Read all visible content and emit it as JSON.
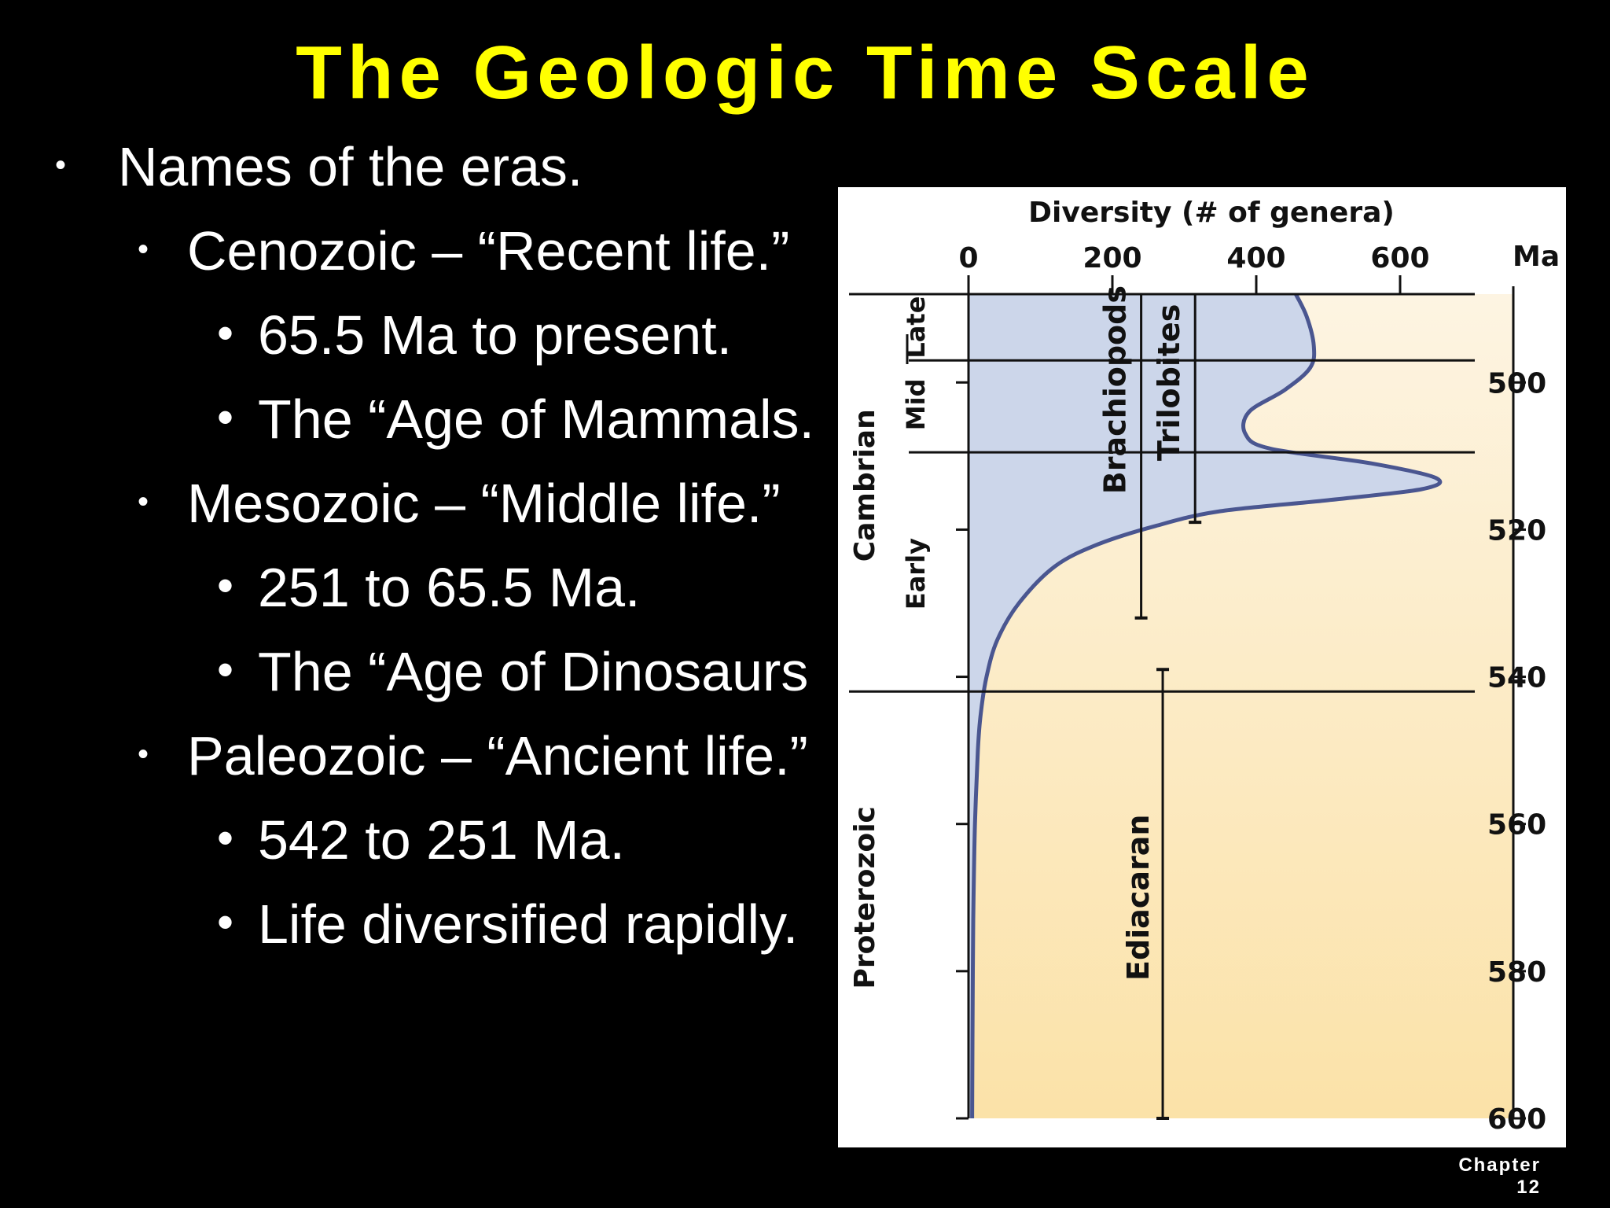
{
  "slide": {
    "title": "The Geologic Time Scale",
    "footer_line1": "Chapter",
    "footer_line2": "12"
  },
  "bullets": {
    "l1": "Names of the eras.",
    "cenozoic": "Cenozoic – “Recent life.”",
    "cenozoic_a": "65.5 Ma to present.",
    "cenozoic_b": "The “Age of Mammals.",
    "mesozoic": "Mesozoic – “Middle life.”",
    "mesozoic_a": "251 to 65.5 Ma.",
    "mesozoic_b": "The “Age of Dinosaurs",
    "paleozoic": "Paleozoic – “Ancient life.”",
    "paleozoic_a": "542 to 251 Ma.",
    "paleozoic_b": "Life diversified rapidly."
  },
  "colors": {
    "title": "#ffff00",
    "background": "#000000",
    "plot_fill_top": "#fdf4e2",
    "plot_fill_bottom": "#fbe2a8",
    "diversity_fill": "#ccd6ea",
    "diversity_line": "#4a5690"
  },
  "chart_data": {
    "type": "area",
    "xlabel": "Diversity (# of genera)",
    "ylabel": "Ma",
    "xlim": [
      0,
      680
    ],
    "ylim": [
      600,
      488
    ],
    "x_ticks": [
      0,
      200,
      400,
      600
    ],
    "y_ticks": [
      500,
      520,
      540,
      560,
      580,
      600
    ],
    "period_labels": [
      "Cambrian",
      "Proterozoic"
    ],
    "epoch_labels": [
      "Late",
      "Mid",
      "Early"
    ],
    "boundaries_ma": [
      497,
      509.5,
      542
    ],
    "range_bars": [
      {
        "label": "Brachiopods",
        "x": 240,
        "top": 488,
        "bottom": 532
      },
      {
        "label": "Trilobites",
        "x": 315,
        "top": 488,
        "bottom": 519
      },
      {
        "label": "Ediacaran",
        "x": 270,
        "top": 539,
        "bottom": 600
      }
    ],
    "series": [
      {
        "values": [
          {
            "ma": 488,
            "x": 455
          },
          {
            "ma": 491,
            "x": 470
          },
          {
            "ma": 495,
            "x": 480
          },
          {
            "ma": 498,
            "x": 475
          },
          {
            "ma": 501,
            "x": 440
          },
          {
            "ma": 504,
            "x": 390
          },
          {
            "ma": 507,
            "x": 385
          },
          {
            "ma": 509,
            "x": 420
          },
          {
            "ma": 511,
            "x": 560
          },
          {
            "ma": 513,
            "x": 650
          },
          {
            "ma": 514.5,
            "x": 630
          },
          {
            "ma": 516,
            "x": 500
          },
          {
            "ma": 517.5,
            "x": 350
          },
          {
            "ma": 519.5,
            "x": 260
          },
          {
            "ma": 522,
            "x": 180
          },
          {
            "ma": 525,
            "x": 120
          },
          {
            "ma": 530,
            "x": 70
          },
          {
            "ma": 535,
            "x": 40
          },
          {
            "ma": 540,
            "x": 25
          },
          {
            "ma": 545,
            "x": 17
          },
          {
            "ma": 550,
            "x": 13
          },
          {
            "ma": 560,
            "x": 9
          },
          {
            "ma": 570,
            "x": 7
          },
          {
            "ma": 580,
            "x": 6
          },
          {
            "ma": 600,
            "x": 5
          }
        ]
      }
    ]
  }
}
